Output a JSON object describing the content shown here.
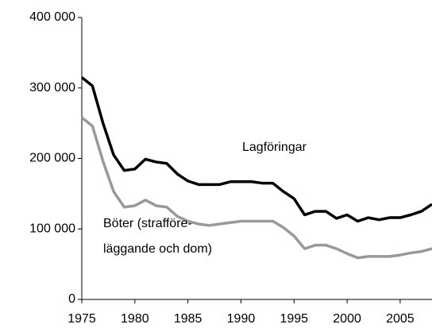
{
  "chart_data": {
    "type": "line",
    "x": [
      1975,
      1976,
      1977,
      1978,
      1979,
      1980,
      1981,
      1982,
      1983,
      1984,
      1985,
      1986,
      1987,
      1988,
      1989,
      1990,
      1991,
      1992,
      1993,
      1994,
      1995,
      1996,
      1997,
      1998,
      1999,
      2000,
      2001,
      2002,
      2003,
      2004,
      2005,
      2006,
      2007,
      2008
    ],
    "series": [
      {
        "name": "Lagföringar",
        "color": "#000000",
        "values": [
          315000,
          303000,
          250000,
          205000,
          183000,
          185000,
          199000,
          195000,
          193000,
          178000,
          168000,
          163000,
          163000,
          163000,
          167000,
          167000,
          167000,
          165000,
          165000,
          153000,
          143000,
          120000,
          125000,
          125000,
          115000,
          120000,
          111000,
          116000,
          113000,
          116000,
          116000,
          120000,
          125000,
          135000
        ]
      },
      {
        "name_lines": [
          "Böter (strafföre-",
          "läggande och dom)"
        ],
        "color": "#999999",
        "values": [
          258000,
          246000,
          196000,
          153000,
          131000,
          133000,
          141000,
          133000,
          131000,
          118000,
          111000,
          107000,
          105000,
          107000,
          109000,
          111000,
          111000,
          111000,
          111000,
          102000,
          90000,
          72000,
          77000,
          77000,
          72000,
          65000,
          59000,
          61000,
          61000,
          61000,
          63000,
          66000,
          68000,
          72000
        ]
      }
    ],
    "xlim": [
      1975,
      2008
    ],
    "xticks": [
      1975,
      1980,
      1985,
      1990,
      1995,
      2000,
      2005
    ],
    "ylim": [
      0,
      400000
    ],
    "yticks": [
      0,
      {
        "value": 100000,
        "label": "100 000"
      },
      {
        "value": 200000,
        "label": "200 000"
      },
      {
        "value": 300000,
        "label": "300 000"
      },
      {
        "value": 400000,
        "label": "400 000"
      }
    ],
    "grid": false
  }
}
